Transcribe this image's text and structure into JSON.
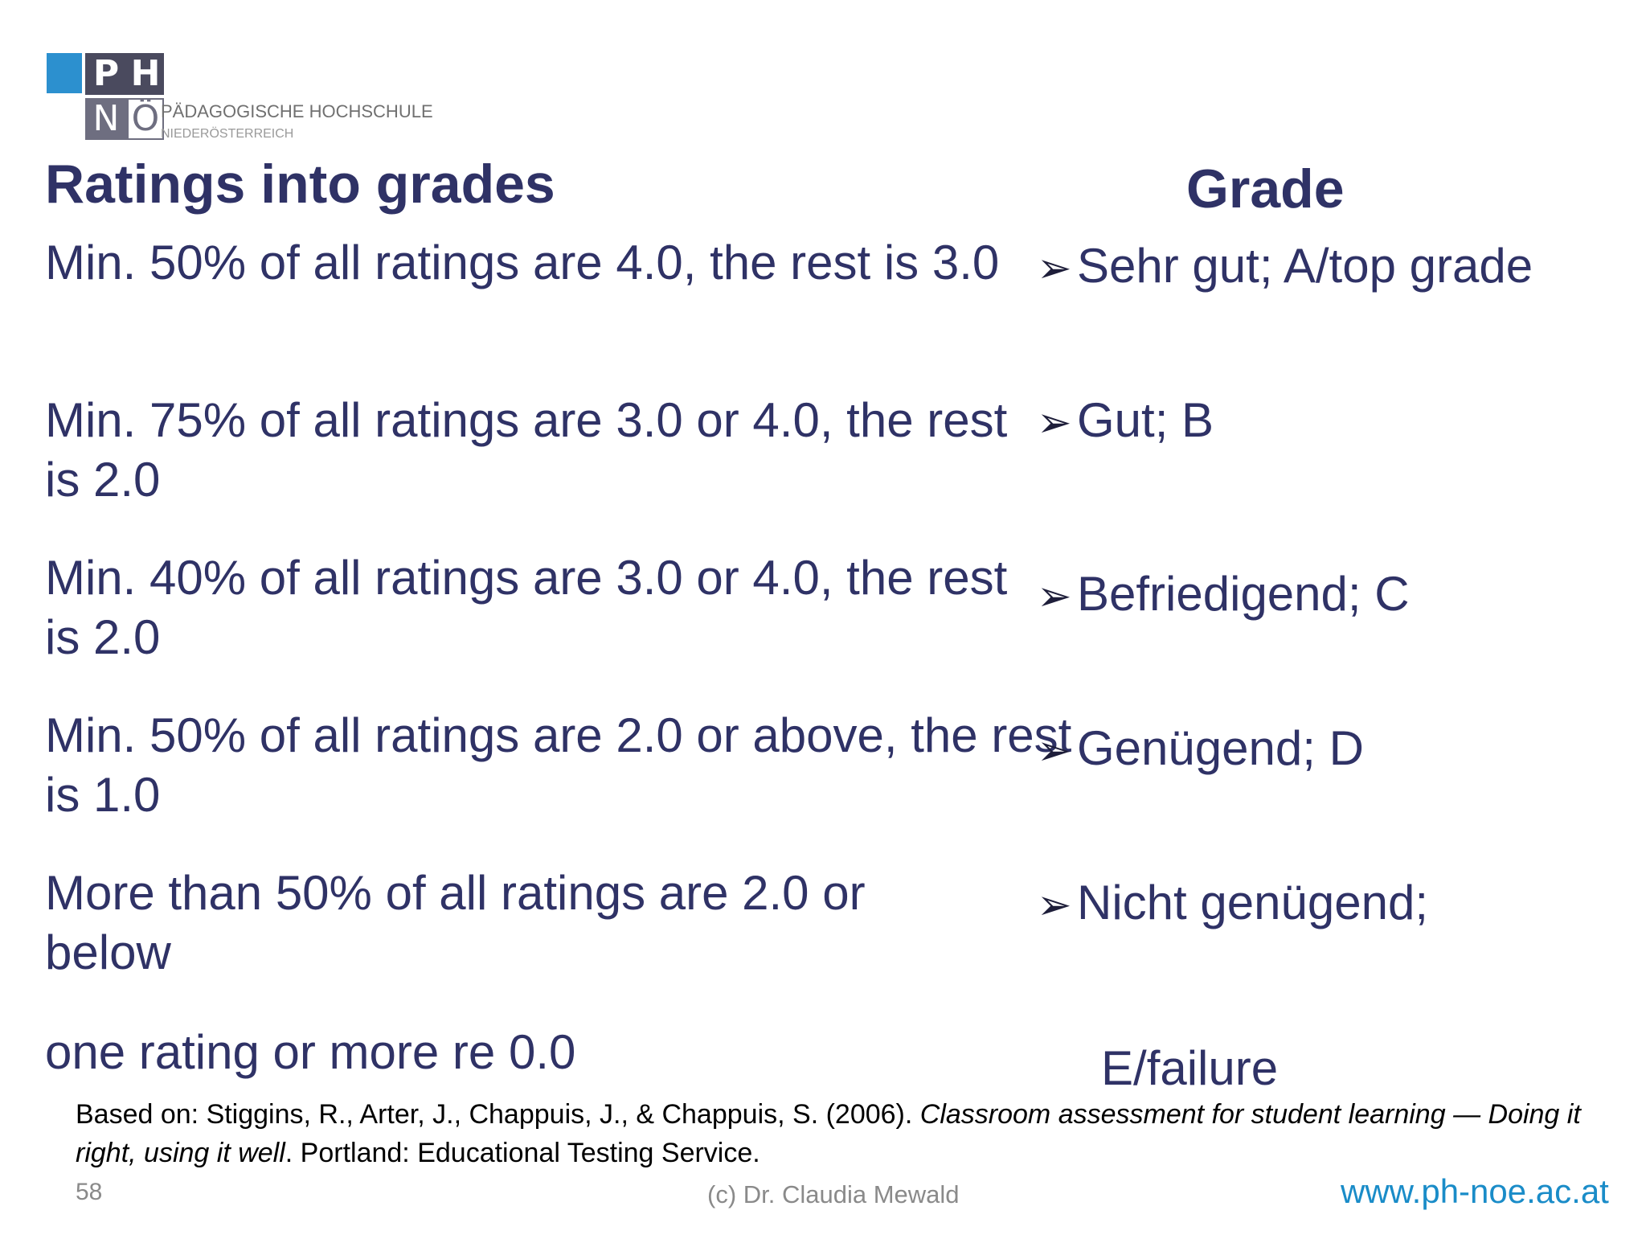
{
  "logo": {
    "letters": [
      "P",
      "H",
      "N",
      "Ö"
    ],
    "line1": "PÄDAGOGISCHE HOCHSCHULE",
    "line2": "NIEDERÖSTERREICH"
  },
  "title": "Ratings into grades",
  "grade_header": "Grade",
  "rows": [
    {
      "rule": "Min. 50% of all ratings are 4.0, the rest is 3.0",
      "grade": "Sehr gut; A/top grade"
    },
    {
      "rule": "Min. 75% of all ratings are 3.0 or 4.0, the rest is 2.0",
      "grade": "Gut; B"
    },
    {
      "rule": "Min. 40% of all ratings are 3.0 or 4.0, the rest is 2.0",
      "grade": "Befriedigend; C"
    },
    {
      "rule": "Min. 50% of all ratings are 2.0 or above, the rest is 1.0",
      "grade": "Genügend; D"
    },
    {
      "rule": "More than 50% of all ratings are 2.0 or below",
      "grade": "Nicht genügend;"
    },
    {
      "rule": "one rating or more re  0.0",
      "grade": "E/failure"
    }
  ],
  "bullet_glyph": "➢",
  "reference": {
    "prefix": "Based on: Stiggins, R., Arter, J., Chappuis, J., & Chappuis, S. (2006). ",
    "italic": "Classroom assessment for student learning — Doing it right, using it well",
    "suffix": ". Portland: Educational Testing Service."
  },
  "footer": {
    "page_number": "58",
    "copyright": "(c) Dr. Claudia Mewald",
    "url": "www.ph-noe.ac.at"
  }
}
